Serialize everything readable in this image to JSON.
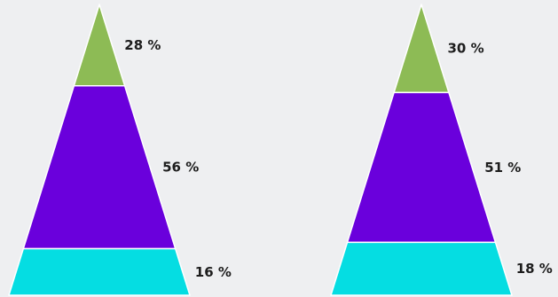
{
  "colors": {
    "background": "#eeeff1",
    "top": "#8dbb55",
    "middle": "#6a00dc",
    "bottom": "#05dde2",
    "separator": "#ffffff",
    "label": "#1d1d1d"
  },
  "chart_data": [
    {
      "type": "pyramid",
      "title": "",
      "segments": [
        {
          "value": 28,
          "label": "28 %",
          "color": "#8dbb55"
        },
        {
          "value": 56,
          "label": "56 %",
          "color": "#6a00dc"
        },
        {
          "value": 16,
          "label": "16 %",
          "color": "#05dde2"
        }
      ]
    },
    {
      "type": "pyramid",
      "title": "",
      "segments": [
        {
          "value": 30,
          "label": "30 %",
          "color": "#8dbb55"
        },
        {
          "value": 51,
          "label": "51 %",
          "color": "#6a00dc"
        },
        {
          "value": 18,
          "label": "18 %",
          "color": "#05dde2"
        }
      ]
    }
  ]
}
